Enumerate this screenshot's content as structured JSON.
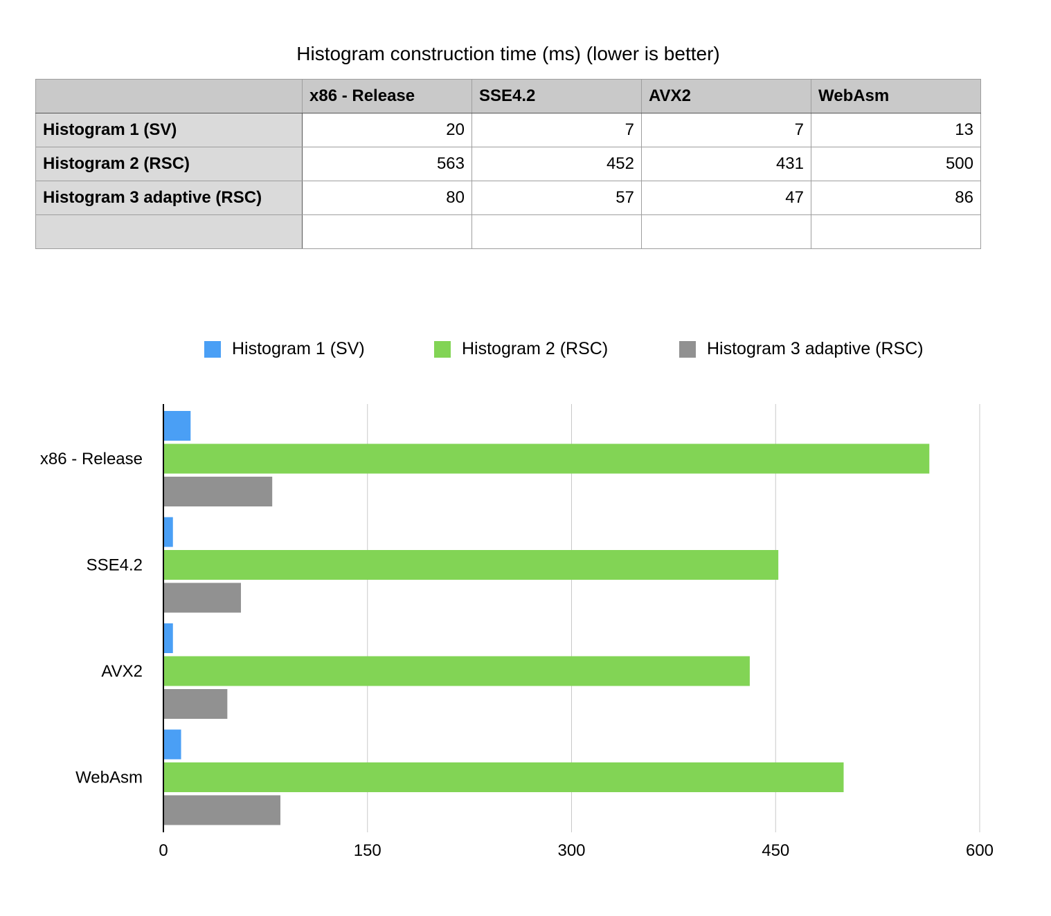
{
  "title": "Histogram construction time (ms) (lower is better)",
  "table": {
    "columns": [
      "",
      "x86 - Release",
      "SSE4.2",
      "AVX2",
      "WebAsm"
    ],
    "rows": [
      {
        "label": "Histogram 1 (SV)",
        "values": [
          "20",
          "7",
          "7",
          "13"
        ]
      },
      {
        "label": "Histogram 2 (RSC)",
        "values": [
          "563",
          "452",
          "431",
          "500"
        ]
      },
      {
        "label": "Histogram 3 adaptive (RSC)",
        "values": [
          "80",
          "57",
          "47",
          "86"
        ]
      },
      {
        "label": "",
        "values": [
          "",
          "",
          "",
          ""
        ]
      }
    ]
  },
  "chart_data": {
    "type": "bar",
    "orientation": "horizontal",
    "categories": [
      "x86 - Release",
      "SSE4.2",
      "AVX2",
      "WebAsm"
    ],
    "series": [
      {
        "name": "Histogram 1 (SV)",
        "color": "#4a9ff5",
        "values": [
          20,
          7,
          7,
          13
        ]
      },
      {
        "name": "Histogram 2 (RSC)",
        "color": "#82d455",
        "values": [
          563,
          452,
          431,
          500
        ]
      },
      {
        "name": "Histogram 3 adaptive (RSC)",
        "color": "#919191",
        "values": [
          80,
          57,
          47,
          86
        ]
      }
    ],
    "xlim": [
      0,
      600
    ],
    "xticks": [
      0,
      150,
      300,
      450,
      600
    ],
    "grid": true,
    "legend_position": "top"
  }
}
